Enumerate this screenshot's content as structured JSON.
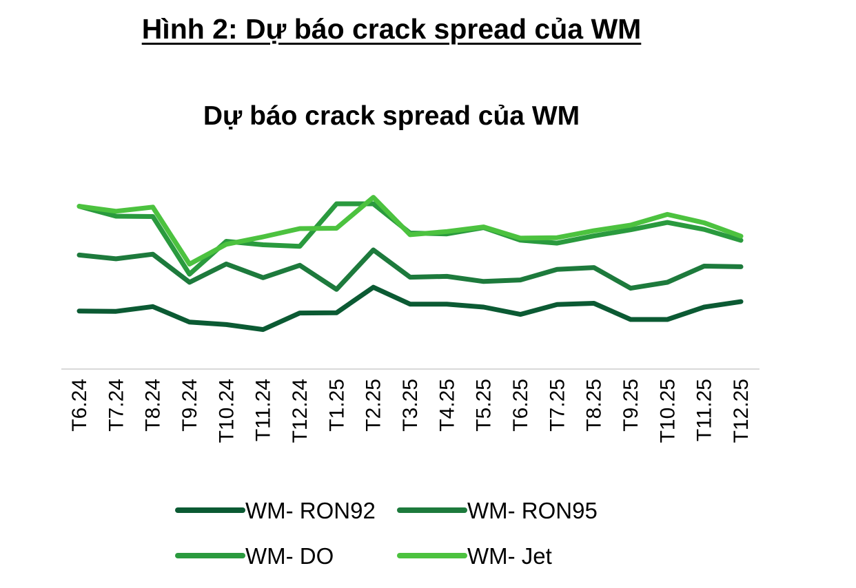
{
  "figure_caption": "Hình 2: Dự báo crack spread của WM",
  "chart_data": {
    "type": "line",
    "title": "Dự báo crack spread của WM",
    "xlabel": "",
    "ylabel": "",
    "ylim": [
      0,
      100
    ],
    "grid": false,
    "legend_position": "bottom",
    "categories": [
      "T6.24",
      "T7.24",
      "T8.24",
      "T9.24",
      "T10.24",
      "T11.24",
      "T12.24",
      "T1.25",
      "T2.25",
      "T3.25",
      "T4.25",
      "T5.25",
      "T6.25",
      "T7.25",
      "T8.25",
      "T9.25",
      "T10.25",
      "T11.25",
      "T12.25"
    ],
    "series": [
      {
        "name": "WM- RON92",
        "color": "#0b5a33",
        "values": [
          35.1,
          34.9,
          37.8,
          28.4,
          26.9,
          23.9,
          33.9,
          34.1,
          49.5,
          39.3,
          39.3,
          37.5,
          33.1,
          39.1,
          39.8,
          30.0,
          30.0,
          37.5,
          40.8
        ]
      },
      {
        "name": "WM- RON95",
        "color": "#1d7a3c",
        "values": [
          69.0,
          66.7,
          69.5,
          52.5,
          63.6,
          55.3,
          62.8,
          48.2,
          72.1,
          55.6,
          56.1,
          53.0,
          53.9,
          60.3,
          61.4,
          48.9,
          52.5,
          62.3,
          61.9
        ]
      },
      {
        "name": "WM- DO",
        "color": "#2a9a3e",
        "values": [
          98.5,
          92.5,
          92.3,
          57.4,
          77.3,
          75.2,
          74.3,
          100.0,
          100.0,
          82.3,
          81.8,
          85.6,
          78.0,
          76.2,
          80.6,
          84.3,
          88.7,
          84.5,
          77.9
        ]
      },
      {
        "name": "WM- Jet",
        "color": "#4cc23f",
        "values": [
          98.5,
          95.5,
          98.0,
          63.5,
          75.5,
          80.0,
          85.0,
          85.2,
          103.9,
          81.3,
          83.2,
          86.0,
          79.2,
          79.5,
          83.7,
          87.1,
          93.6,
          88.5,
          80.4
        ]
      }
    ]
  }
}
